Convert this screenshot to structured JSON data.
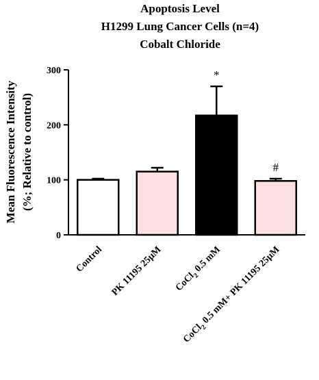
{
  "chart_data": {
    "type": "bar",
    "title": [
      "Apoptosis Level",
      "H1299 Lung Cancer Cells (n=4)",
      "Cobalt Chloride"
    ],
    "ylabel": [
      "Mean Fluorescence Intensity",
      "(%; Relative to control)"
    ],
    "xlabel": "",
    "ylim": [
      0,
      300
    ],
    "yticks": [
      0,
      100,
      200,
      300
    ],
    "categories": [
      {
        "label": "Control"
      },
      {
        "label": "PK 11195 25µM"
      },
      {
        "label_main": "CoCl",
        "label_sub": "2",
        "label_rest": " 0.5 mM"
      },
      {
        "label_main": "CoCl",
        "label_sub": "2",
        "label_rest": " 0.5 mM+ PK 11195 25µM"
      }
    ],
    "values": [
      100,
      115,
      217,
      98
    ],
    "errors": [
      2,
      7,
      53,
      4
    ],
    "significance": [
      "",
      "",
      "*",
      "#"
    ],
    "colors": [
      "#ffffff",
      "#fde0e0",
      "#000000",
      "#fde0e0"
    ],
    "edge_color": "#000000",
    "grid": false,
    "legend": "none"
  }
}
